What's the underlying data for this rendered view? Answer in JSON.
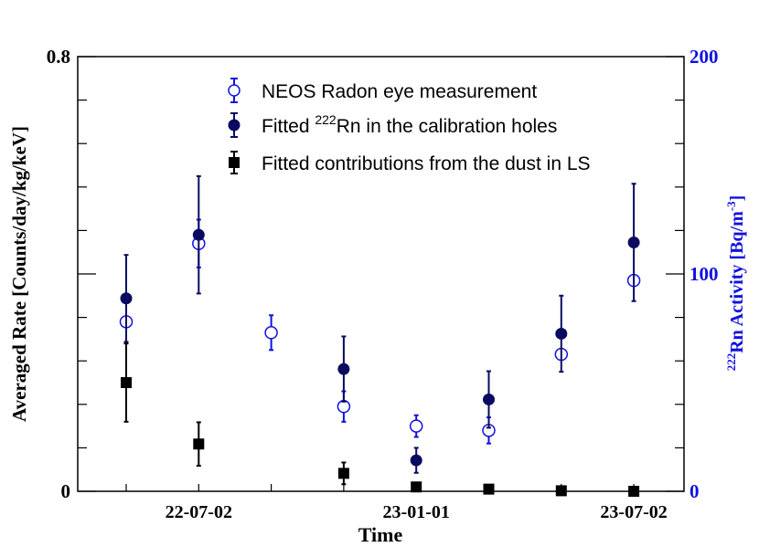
{
  "chart_data": {
    "type": "scatter",
    "xlabel": "Time",
    "ylabel_left": "Averaged Rate [Counts/day/kg/keV]",
    "ylabel_right_sup": "222",
    "ylabel_right_main": "Rn Activity [Bq/m",
    "ylabel_right_exp": "-3",
    "ylabel_right_close": "]",
    "ylim_left": [
      0,
      0.8
    ],
    "ylim_right": [
      0,
      200
    ],
    "x_ticklabels": [
      "22-07-02",
      "23-01-01",
      "23-07-02"
    ],
    "x_ticklabel_index": [
      1,
      4,
      7
    ],
    "y_left_ticklabels": [
      "0",
      "0.8"
    ],
    "y_right_ticklabels": [
      "0",
      "100",
      "200"
    ],
    "x_count": 8,
    "colors": {
      "radon_eye": "#1010e0",
      "calib": "#0a0a60",
      "dust": "#000000",
      "right_axis": "#1010e0"
    },
    "legend": [
      {
        "label": "NEOS Radon eye measurement",
        "marker": "open-circle"
      },
      {
        "label_pre": "Fitted ",
        "label_sup": "222",
        "label_post": "Rn in the calibration holes",
        "marker": "filled-circle"
      },
      {
        "label": "Fitted contributions from the dust in LS",
        "marker": "filled-square"
      }
    ],
    "series": [
      {
        "name": "NEOS Radon eye measurement",
        "axis": "right",
        "points": [
          {
            "i": 0,
            "y": 78,
            "err": 0
          },
          {
            "i": 1,
            "y": 114,
            "err": 11
          },
          {
            "i": 2,
            "y": 73,
            "err": 8
          },
          {
            "i": 3,
            "y": 39,
            "err": 7
          },
          {
            "i": 4,
            "y": 30,
            "err": 5
          },
          {
            "i": 5,
            "y": 28,
            "err": 6
          },
          {
            "i": 6,
            "y": 63,
            "err": 0
          },
          {
            "i": 7,
            "y": 97,
            "err": 0
          }
        ]
      },
      {
        "name": "Fitted 222Rn in the calibration holes",
        "axis": "left",
        "points": [
          {
            "i": 0,
            "y": 0.355,
            "err": 0.08
          },
          {
            "i": 1,
            "y": 0.472,
            "err": 0.108
          },
          {
            "i": 3,
            "y": 0.225,
            "err": 0.06
          },
          {
            "i": 4,
            "y": 0.057,
            "err": 0.023
          },
          {
            "i": 5,
            "y": 0.169,
            "err": 0.052
          },
          {
            "i": 6,
            "y": 0.29,
            "err": 0.07
          },
          {
            "i": 7,
            "y": 0.458,
            "err": 0.108
          }
        ]
      },
      {
        "name": "Fitted contributions from the dust in LS",
        "axis": "left",
        "points": [
          {
            "i": 0,
            "y": 0.2,
            "err": 0.072
          },
          {
            "i": 1,
            "y": 0.087,
            "err": 0.04
          },
          {
            "i": 3,
            "y": 0.033,
            "err": 0.02
          },
          {
            "i": 4,
            "y": 0.008,
            "err": 0.005
          },
          {
            "i": 5,
            "y": 0.004,
            "err": 0
          },
          {
            "i": 6,
            "y": 0.001,
            "err": 0
          },
          {
            "i": 7,
            "y": 0.0,
            "err": 0
          }
        ]
      }
    ]
  }
}
